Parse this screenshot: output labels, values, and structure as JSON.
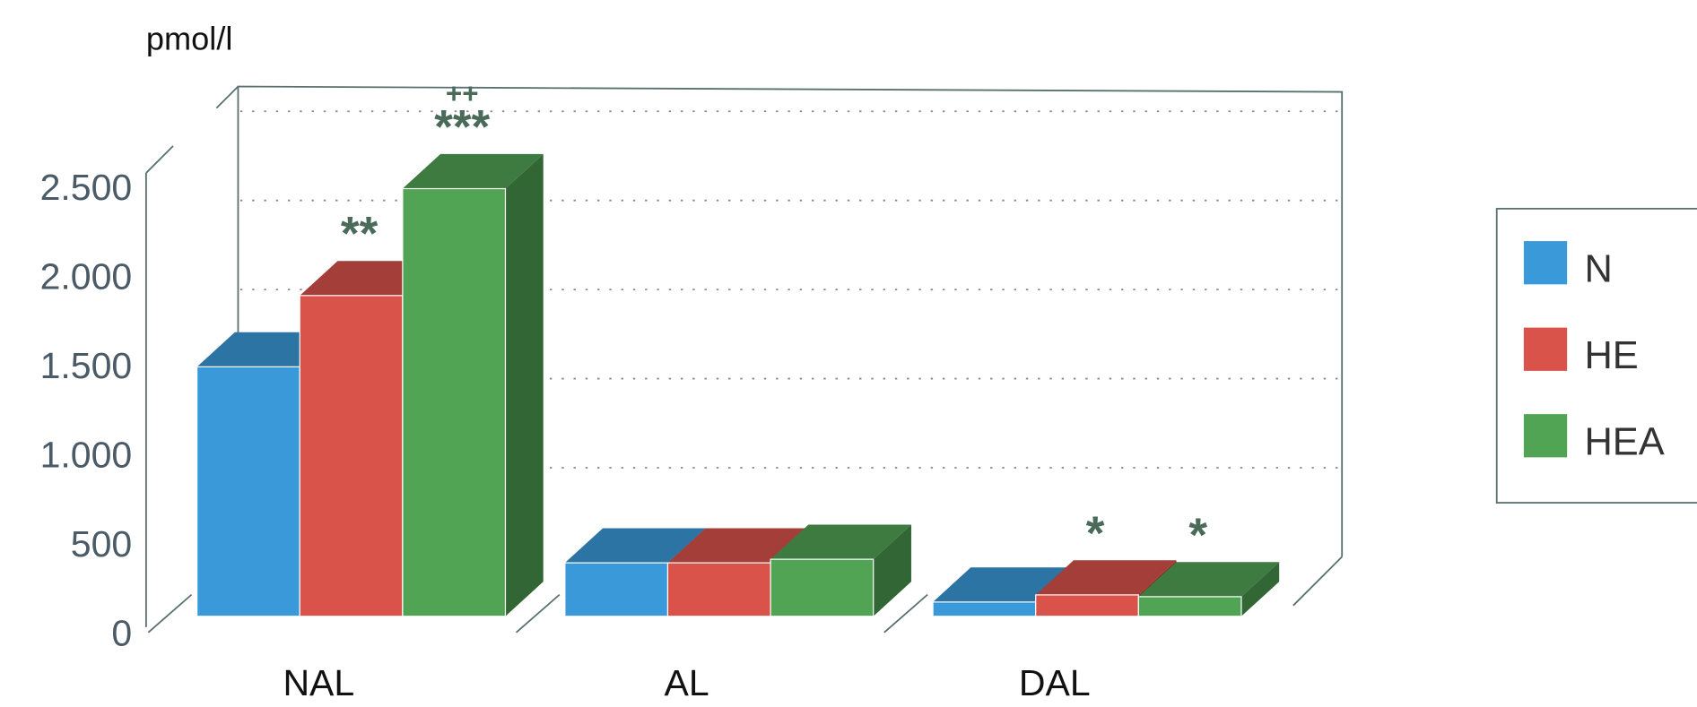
{
  "chart_data": {
    "type": "bar3d",
    "y_label": "pmol/l",
    "categories": [
      "NAL",
      "AL",
      "DAL"
    ],
    "series": [
      {
        "name": "N",
        "color": "#3a9ad9",
        "values": [
          1400,
          300,
          80
        ]
      },
      {
        "name": "HE",
        "color": "#d9534a",
        "values": [
          1800,
          300,
          120
        ]
      },
      {
        "name": "HEA",
        "color": "#52a455",
        "values": [
          2400,
          320,
          110
        ]
      }
    ],
    "ylim": [
      0,
      2500
    ],
    "yticks": [
      0,
      500,
      {
        "value": 1000,
        "label": "1.000"
      },
      {
        "value": 1500,
        "label": "1.500"
      },
      {
        "value": 2000,
        "label": "2.000"
      },
      {
        "value": 2500,
        "label": "2.500"
      }
    ],
    "grid": true,
    "legend": "right",
    "annotations": [
      {
        "text": "**",
        "category": "NAL",
        "series": "HE"
      },
      {
        "text": "***",
        "category": "NAL",
        "series": "HEA"
      },
      {
        "text": "++",
        "category": "NAL",
        "series": "HEA"
      },
      {
        "text": "*",
        "category": "DAL",
        "series": "HE"
      },
      {
        "text": "*",
        "category": "DAL",
        "series": "HEA"
      }
    ]
  }
}
